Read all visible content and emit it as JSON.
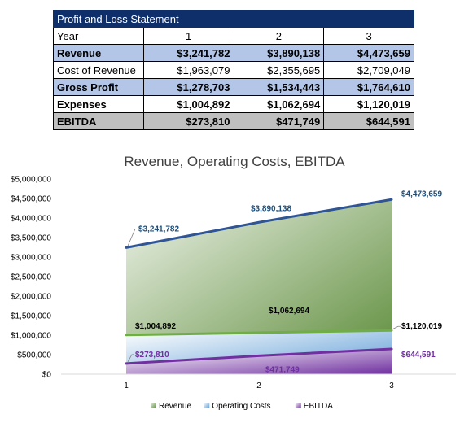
{
  "table": {
    "title": "Profit and Loss Statement",
    "year_label": "Year",
    "years": [
      "1",
      "2",
      "3"
    ],
    "rows": [
      {
        "label": "Revenue",
        "values": [
          "$3,241,782",
          "$3,890,138",
          "$4,473,659"
        ]
      },
      {
        "label": "Cost of Revenue",
        "values": [
          "$1,963,079",
          "$2,355,695",
          "$2,709,049"
        ]
      },
      {
        "label": "Gross Profit",
        "values": [
          "$1,278,703",
          "$1,534,443",
          "$1,764,610"
        ]
      },
      {
        "label": "Expenses",
        "values": [
          "$1,004,892",
          "$1,062,694",
          "$1,120,019"
        ]
      },
      {
        "label": "EBITDA",
        "values": [
          "$273,810",
          "$471,749",
          "$644,591"
        ]
      }
    ]
  },
  "chart_data": {
    "type": "area",
    "title": "Revenue, Operating Costs, EBITDA",
    "x": [
      1,
      2,
      3
    ],
    "x_ticks": [
      "1",
      "2",
      "3"
    ],
    "ylim": [
      0,
      5000000
    ],
    "y_ticks": [
      "$0",
      "$500,000",
      "$1,000,000",
      "$1,500,000",
      "$2,000,000",
      "$2,500,000",
      "$3,000,000",
      "$3,500,000",
      "$4,000,000",
      "$4,500,000",
      "$5,000,000"
    ],
    "grid": false,
    "legend_position": "bottom",
    "series": [
      {
        "name": "Revenue",
        "values": [
          3241782,
          3890138,
          4473659
        ],
        "labels": [
          "$3,241,782",
          "$3,890,138",
          "$4,473,659"
        ],
        "line_color": "#2f5597",
        "fill_light": "#eef3ea",
        "fill_dark": "#5a8a36",
        "label_color": "#1f4e79"
      },
      {
        "name": "Operating Costs",
        "values": [
          1004892,
          1062694,
          1120019
        ],
        "labels": [
          "$1,004,892",
          "$1,062,694",
          "$1,120,019"
        ],
        "line_color": "#70ad47",
        "fill_light": "#ffffff",
        "fill_dark": "#5b9bd5",
        "label_color": "#000000"
      },
      {
        "name": "EBITDA",
        "values": [
          273810,
          471749,
          644591
        ],
        "labels": [
          "$273,810",
          "$471,749",
          "$644,591"
        ],
        "line_color": "#7030a0",
        "fill_light": "#ffffff",
        "fill_dark": "#7030a0",
        "label_color": "#7030a0"
      }
    ]
  }
}
